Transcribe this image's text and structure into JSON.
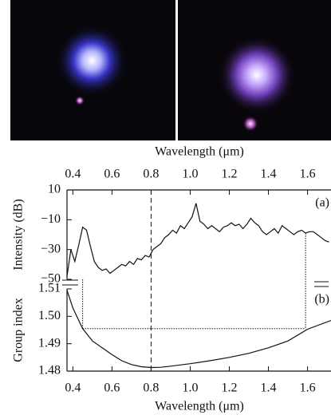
{
  "chart_data": [
    {
      "type": "line",
      "xlabel": "Wavelength (μm)",
      "ylabel": "Intensity (dB)",
      "annotation": "(a)",
      "xlim": [
        0.37,
        1.72
      ],
      "xticks": [
        0.4,
        0.6,
        0.8,
        {
          "value": 1.0,
          "label": "1.0"
        },
        1.2,
        1.4,
        1.6
      ],
      "ylim": [
        -50,
        10
      ],
      "yticks": [
        10,
        {
          "value": -10,
          "label": "−10"
        },
        {
          "value": -30,
          "label": "−30"
        },
        {
          "value": -50,
          "label": "−50"
        }
      ],
      "dashed_x": 0.8,
      "dotted_x": [
        0.45,
        1.59
      ],
      "x": [
        0.37,
        0.39,
        0.41,
        0.43,
        0.45,
        0.47,
        0.49,
        0.51,
        0.53,
        0.55,
        0.57,
        0.59,
        0.61,
        0.63,
        0.65,
        0.67,
        0.69,
        0.71,
        0.73,
        0.75,
        0.77,
        0.79,
        0.81,
        0.83,
        0.85,
        0.87,
        0.89,
        0.91,
        0.93,
        0.95,
        0.97,
        0.99,
        1.01,
        1.03,
        1.05,
        1.07,
        1.09,
        1.11,
        1.13,
        1.15,
        1.17,
        1.19,
        1.21,
        1.23,
        1.25,
        1.27,
        1.29,
        1.31,
        1.33,
        1.35,
        1.37,
        1.39,
        1.41,
        1.43,
        1.45,
        1.47,
        1.49,
        1.51,
        1.53,
        1.55,
        1.57,
        1.59,
        1.61,
        1.63,
        1.65,
        1.67,
        1.69,
        1.71
      ],
      "series": [
        {
          "color": "#111111",
          "values": [
            -48,
            -30,
            -38,
            -27,
            -15,
            -17,
            -28,
            -38,
            -42,
            -44,
            -43,
            -46,
            -44,
            -42,
            -40,
            -41,
            -38,
            -40,
            -36,
            -37,
            -34,
            -35,
            -30,
            -28,
            -26,
            -22,
            -20,
            -17,
            -19,
            -14,
            -16,
            -12,
            -8,
            1,
            -11,
            -13,
            -16,
            -14,
            -16,
            -18,
            -15,
            -14,
            -12,
            -14,
            -13,
            -16,
            -13,
            -9,
            -12,
            -14,
            -18,
            -20,
            -18,
            -16,
            -19,
            -14,
            -16,
            -18,
            -20,
            -18,
            -17,
            -19,
            -18,
            -18,
            -20,
            -22,
            -24,
            -25
          ]
        }
      ]
    },
    {
      "type": "line",
      "xlabel": "Wavelength (μm)",
      "ylabel": "Group index",
      "annotation": "(b)",
      "xlim": [
        0.37,
        1.72
      ],
      "xticks": [
        0.4,
        0.6,
        0.8,
        {
          "value": 1.0,
          "label": "1.0"
        },
        1.2,
        1.4,
        1.6
      ],
      "ylim": [
        1.48,
        1.51
      ],
      "yticks": [
        1.48,
        1.49,
        {
          "value": 1.5,
          "label": "1.50"
        },
        1.51
      ],
      "dotted_y": 1.4955,
      "x": [
        0.37,
        0.4,
        0.45,
        0.5,
        0.55,
        0.6,
        0.65,
        0.7,
        0.75,
        0.8,
        0.85,
        0.9,
        1.0,
        1.1,
        1.2,
        1.3,
        1.4,
        1.5,
        1.6,
        1.72
      ],
      "series": [
        {
          "color": "#111111",
          "values": [
            1.5095,
            1.503,
            1.4955,
            1.491,
            1.4885,
            1.486,
            1.4838,
            1.4824,
            1.4816,
            1.4813,
            1.4814,
            1.4818,
            1.4827,
            1.4838,
            1.485,
            1.4865,
            1.4885,
            1.491,
            1.4953,
            1.4985
          ]
        }
      ]
    }
  ]
}
